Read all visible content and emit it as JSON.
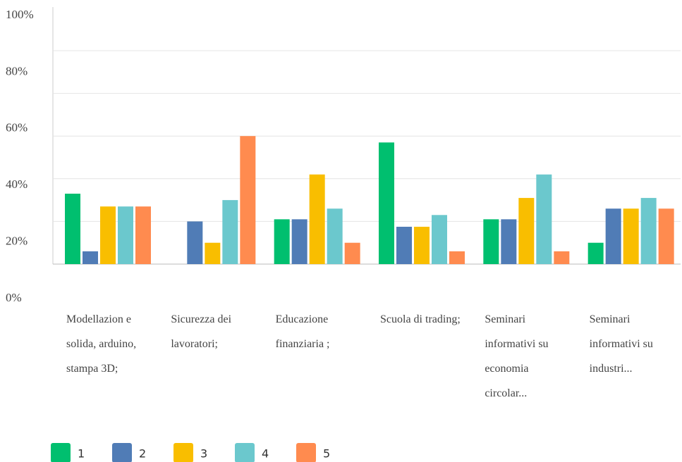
{
  "chart_data": {
    "type": "bar",
    "categories": [
      "Modellazion e solida, arduino, stampa 3D;",
      "Sicurezza dei lavoratori;",
      "Educazione finanziaria ;",
      "Scuola di trading;",
      "Seminari informativi su economia circolar...",
      "Seminari informativi su industri..."
    ],
    "series": [
      {
        "name": "1",
        "color": "#00bf6f",
        "values": [
          33,
          0,
          21,
          57,
          21,
          10
        ]
      },
      {
        "name": "2",
        "color": "#507cb6",
        "values": [
          6,
          20,
          21,
          17.5,
          21,
          26
        ]
      },
      {
        "name": "3",
        "color": "#f9be00",
        "values": [
          27,
          10,
          42,
          17.5,
          31,
          26
        ]
      },
      {
        "name": "4",
        "color": "#6bc8cd",
        "values": [
          27,
          30,
          26,
          23,
          42,
          31
        ]
      },
      {
        "name": "5",
        "color": "#ff8b4f",
        "values": [
          27,
          60,
          10,
          6,
          6,
          26
        ]
      }
    ],
    "ylim": [
      0,
      100
    ],
    "yticks": [
      {
        "value": 0,
        "label": "0%"
      },
      {
        "value": 20,
        "label": "20%"
      },
      {
        "value": 40,
        "label": "40%"
      },
      {
        "value": 60,
        "label": "60%"
      },
      {
        "value": 80,
        "label": "80%"
      },
      {
        "value": 100,
        "label": "100%"
      }
    ],
    "grid": true
  }
}
